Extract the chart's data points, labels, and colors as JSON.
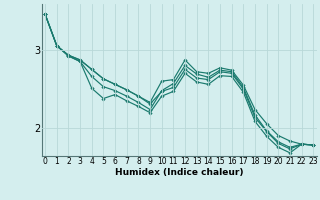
{
  "xlabel": "Humidex (Indice chaleur)",
  "background_color": "#d4eeee",
  "grid_color": "#b8d8d8",
  "line_color": "#1a7a6e",
  "x_ticks": [
    0,
    1,
    2,
    3,
    4,
    5,
    6,
    7,
    8,
    9,
    10,
    11,
    12,
    13,
    14,
    15,
    16,
    17,
    18,
    19,
    20,
    21,
    22,
    23
  ],
  "y_ticks": [
    2,
    3
  ],
  "xlim": [
    -0.3,
    23.3
  ],
  "ylim": [
    1.65,
    3.58
  ],
  "series": [
    [
      3.45,
      3.05,
      2.93,
      2.87,
      2.75,
      2.63,
      2.56,
      2.49,
      2.41,
      2.33,
      2.6,
      2.62,
      2.87,
      2.72,
      2.7,
      2.77,
      2.74,
      2.55,
      2.24,
      2.06,
      1.91,
      1.84,
      1.8,
      1.79
    ],
    [
      3.45,
      3.05,
      2.93,
      2.87,
      2.75,
      2.63,
      2.56,
      2.49,
      2.41,
      2.31,
      2.47,
      2.52,
      2.75,
      2.64,
      2.62,
      2.72,
      2.7,
      2.5,
      2.14,
      1.96,
      1.81,
      1.74,
      1.8,
      1.79
    ],
    [
      3.45,
      3.05,
      2.92,
      2.85,
      2.51,
      2.38,
      2.43,
      2.35,
      2.28,
      2.2,
      2.41,
      2.47,
      2.7,
      2.59,
      2.56,
      2.67,
      2.66,
      2.46,
      2.09,
      1.9,
      1.76,
      1.69,
      1.8,
      1.79
    ],
    [
      3.45,
      3.05,
      2.92,
      2.85,
      2.66,
      2.53,
      2.48,
      2.41,
      2.33,
      2.24,
      2.48,
      2.57,
      2.8,
      2.69,
      2.65,
      2.74,
      2.72,
      2.52,
      2.17,
      1.97,
      1.83,
      1.76,
      1.8,
      1.79
    ]
  ],
  "tick_fontsize": 5.5,
  "xlabel_fontsize": 6.5,
  "ytick_fontsize": 7.0
}
